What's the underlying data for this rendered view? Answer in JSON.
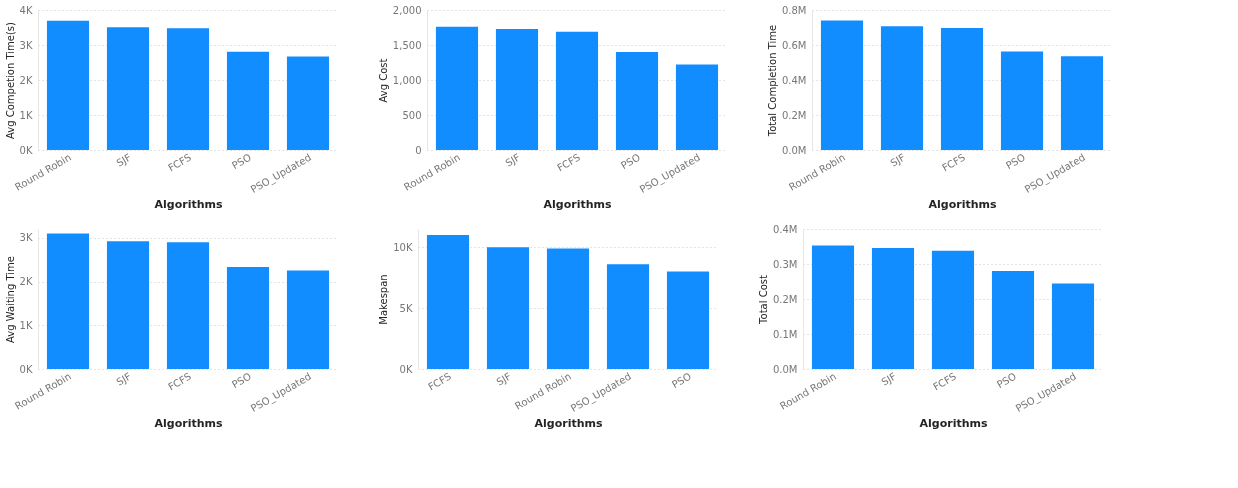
{
  "chart_data": [
    {
      "type": "bar",
      "xlabel": "Algorithms",
      "ylabel": "Avg Competion Time(s)",
      "categories": [
        "Round Robin",
        "SJF",
        "FCFS",
        "PSO",
        "PSO_Updated"
      ],
      "values": [
        3690,
        3510,
        3480,
        2810,
        2670
      ],
      "color": "#118dff",
      "ylim": [
        0,
        4000
      ],
      "yticks": [
        {
          "value": 0,
          "label": "0K"
        },
        {
          "value": 1000,
          "label": "1K"
        },
        {
          "value": 2000,
          "label": "2K"
        },
        {
          "value": 3000,
          "label": "3K"
        },
        {
          "value": 4000,
          "label": "4K"
        }
      ],
      "grid": "y"
    },
    {
      "type": "bar",
      "xlabel": "Algorithms",
      "ylabel": "Avg Cost",
      "categories": [
        "Round Robin",
        "SJF",
        "FCFS",
        "PSO",
        "PSO_Updated"
      ],
      "values": [
        1760,
        1730,
        1690,
        1400,
        1220
      ],
      "color": "#118dff",
      "ylim": [
        0,
        2000
      ],
      "yticks": [
        0,
        {
          "value": 500,
          "label": "500"
        },
        {
          "value": 1000,
          "label": "1,000"
        },
        {
          "value": 1500,
          "label": "1,500"
        },
        {
          "value": 2000,
          "label": "2,000"
        }
      ],
      "grid": "y"
    },
    {
      "type": "bar",
      "xlabel": "Algorithms",
      "ylabel": "Total Completion Time",
      "categories": [
        "Round Robin",
        "SJF",
        "FCFS",
        "PSO",
        "PSO_Updated"
      ],
      "values": [
        740000,
        707000,
        697000,
        563000,
        536000
      ],
      "color": "#118dff",
      "ylim": [
        0,
        800000
      ],
      "yticks": [
        {
          "value": 0,
          "label": "0.0M"
        },
        {
          "value": 200000,
          "label": "0.2M"
        },
        {
          "value": 400000,
          "label": "0.4M"
        },
        {
          "value": 600000,
          "label": "0.6M"
        },
        {
          "value": 800000,
          "label": "0.8M"
        }
      ],
      "grid": "y"
    },
    {
      "type": "bar",
      "xlabel": "Algorithms",
      "ylabel": "Avg Waiting Time",
      "categories": [
        "Round Robin",
        "SJF",
        "FCFS",
        "PSO",
        "PSO_Updated"
      ],
      "values": [
        3100,
        2920,
        2900,
        2330,
        2250
      ],
      "color": "#118dff",
      "ylim": [
        0,
        3200
      ],
      "yticks": [
        {
          "value": 0,
          "label": "0K"
        },
        {
          "value": 1000,
          "label": "1K"
        },
        {
          "value": 2000,
          "label": "2K"
        },
        {
          "value": 3000,
          "label": "3K"
        }
      ],
      "grid": "y"
    },
    {
      "type": "bar",
      "xlabel": "Algorithms",
      "ylabel": "Makespan",
      "categories": [
        "FCFS",
        "SJF",
        "Round Robin",
        "PSO_Updated",
        "PSO"
      ],
      "values": [
        11000,
        10000,
        9900,
        8600,
        8000
      ],
      "color": "#118dff",
      "ylim": [
        0,
        11500
      ],
      "yticks": [
        {
          "value": 0,
          "label": "0K"
        },
        {
          "value": 5000,
          "label": "5K"
        },
        {
          "value": 10000,
          "label": "10K"
        }
      ],
      "grid": "y"
    },
    {
      "type": "bar",
      "xlabel": "Algorithms",
      "ylabel": "Total Cost",
      "categories": [
        "Round Robin",
        "SJF",
        "FCFS",
        "PSO",
        "PSO_Updated"
      ],
      "values": [
        353000,
        346000,
        338000,
        280000,
        244000
      ],
      "color": "#118dff",
      "ylim": [
        0,
        400000
      ],
      "yticks": [
        {
          "value": 0,
          "label": "0.0M"
        },
        {
          "value": 100000,
          "label": "0.1M"
        },
        {
          "value": 200000,
          "label": "0.2M"
        },
        {
          "value": 300000,
          "label": "0.3M"
        },
        {
          "value": 400000,
          "label": "0.4M"
        }
      ],
      "grid": "y"
    }
  ]
}
